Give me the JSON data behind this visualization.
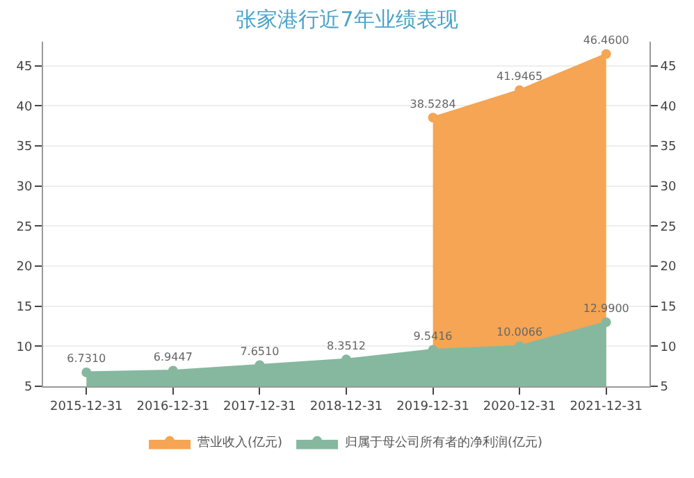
{
  "chart_data": {
    "type": "area",
    "title": "张家港行近7年业绩表现",
    "categories": [
      "2015-12-31",
      "2016-12-31",
      "2017-12-31",
      "2018-12-31",
      "2019-12-31",
      "2020-12-31",
      "2021-12-31"
    ],
    "series": [
      {
        "name": "营业收入(亿元)",
        "color": "#f5a553",
        "values": [
          null,
          null,
          null,
          null,
          38.5284,
          41.9465,
          46.46
        ],
        "value_labels": [
          null,
          null,
          null,
          null,
          "38.5284",
          "41.9465",
          "46.4600"
        ]
      },
      {
        "name": "归属于母公司所有者的净利润(亿元)",
        "color": "#86b8a0",
        "values": [
          6.731,
          6.9447,
          7.651,
          8.3512,
          9.5416,
          10.0066,
          12.99
        ],
        "value_labels": [
          "6.7310",
          "6.9447",
          "7.6510",
          "8.3512",
          "9.5416",
          "10.0066",
          "12.9900"
        ]
      }
    ],
    "ylim": [
      5,
      48
    ],
    "yticks": [
      5,
      10,
      15,
      20,
      25,
      30,
      35,
      40,
      45
    ],
    "y2lim": [
      5,
      48
    ],
    "y2ticks": [
      5,
      10,
      15,
      20,
      25,
      30,
      35,
      40,
      45
    ],
    "grid": "y",
    "legend": "bottom",
    "marker": "circle"
  }
}
